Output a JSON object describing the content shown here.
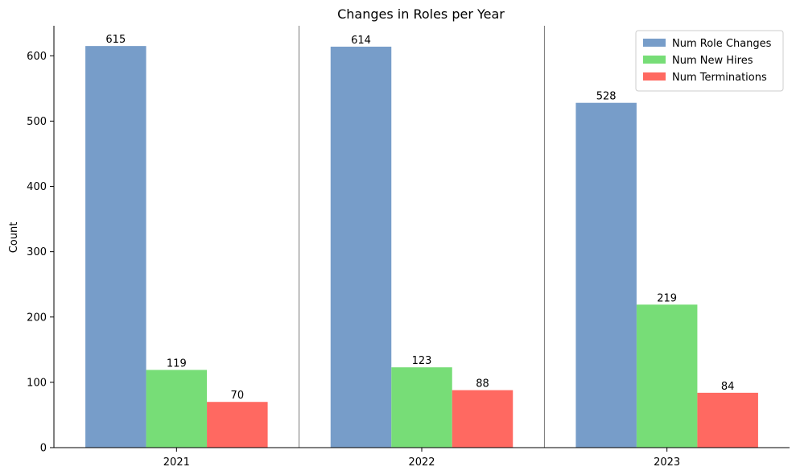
{
  "chart_data": {
    "type": "bar",
    "title": "Changes in Roles per Year",
    "xlabel": "",
    "ylabel": "Count",
    "categories": [
      "2021",
      "2022",
      "2023"
    ],
    "ylim": [
      0,
      646
    ],
    "yticks": [
      0,
      100,
      200,
      300,
      400,
      500,
      600
    ],
    "grid": false,
    "category_separators": true,
    "legend_position": "top-right",
    "series": [
      {
        "name": "Num Role Changes",
        "values": [
          615,
          614,
          528
        ],
        "color": "#779dc9"
      },
      {
        "name": "Num New Hires",
        "values": [
          119,
          123,
          219
        ],
        "color": "#77dd77"
      },
      {
        "name": "Num Terminations",
        "values": [
          70,
          88,
          84
        ],
        "color": "#ff6961"
      }
    ]
  }
}
